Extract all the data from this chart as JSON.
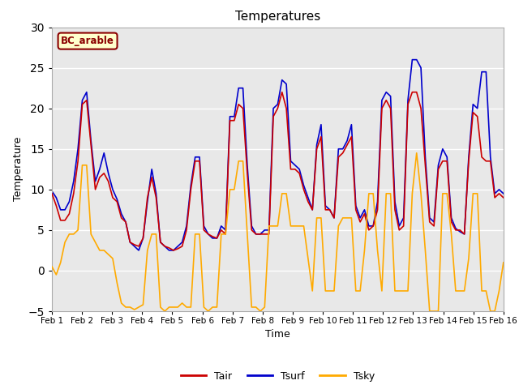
{
  "title": "Temperatures",
  "xlabel": "Time",
  "ylabel": "Temperature",
  "ylim": [
    -5,
    30
  ],
  "yticks": [
    -5,
    0,
    5,
    10,
    15,
    20,
    25,
    30
  ],
  "xtick_labels": [
    "Feb 1",
    "Feb 2",
    "Feb 3",
    "Feb 4",
    "Feb 5",
    "Feb 6",
    "Feb 7",
    "Feb 8",
    "Feb 9",
    "Feb 10",
    "Feb 11",
    "Feb 12",
    "Feb 13",
    "Feb 14",
    "Feb 15",
    "Feb 16"
  ],
  "legend_label": "BC_arable",
  "line_colors": {
    "Tair": "#cc0000",
    "Tsurf": "#0000cc",
    "Tsky": "#ffaa00"
  },
  "plot_bg_color": "#e8e8e8",
  "fig_bg_color": "#ffffff",
  "grid_color": "#ffffff",
  "legend_box_facecolor": "#ffffcc",
  "legend_box_edgecolor": "#8b0000",
  "legend_text_color": "#8b0000",
  "Tair": [
    9.5,
    8.0,
    6.2,
    6.2,
    7.0,
    9.5,
    13.5,
    20.5,
    21.0,
    15.5,
    10.0,
    11.5,
    12.0,
    11.0,
    9.0,
    8.5,
    6.5,
    6.0,
    3.5,
    3.2,
    3.0,
    4.0,
    9.0,
    11.5,
    9.0,
    3.5,
    3.0,
    2.8,
    2.5,
    2.7,
    3.0,
    5.0,
    10.0,
    13.5,
    13.5,
    5.0,
    4.5,
    4.2,
    4.0,
    5.0,
    4.5,
    18.5,
    18.5,
    20.5,
    20.0,
    12.0,
    5.0,
    4.5,
    4.5,
    4.5,
    4.5,
    19.0,
    20.0,
    22.0,
    20.0,
    12.5,
    12.5,
    12.0,
    10.0,
    8.5,
    7.5,
    15.0,
    16.5,
    7.5,
    7.5,
    6.5,
    14.0,
    14.5,
    15.5,
    16.5,
    7.5,
    6.0,
    7.0,
    5.0,
    5.5,
    7.5,
    20.0,
    21.0,
    20.0,
    7.5,
    5.0,
    5.5,
    20.5,
    22.0,
    22.0,
    20.0,
    13.0,
    6.0,
    5.5,
    12.5,
    13.5,
    13.5,
    6.0,
    5.0,
    5.0,
    4.5,
    13.5,
    19.5,
    19.0,
    14.0,
    13.5,
    13.5,
    9.0,
    9.5,
    9.0
  ],
  "Tsurf": [
    9.8,
    9.0,
    7.5,
    7.5,
    8.5,
    11.0,
    15.0,
    21.0,
    22.0,
    16.0,
    11.0,
    12.5,
    14.5,
    12.0,
    10.0,
    8.8,
    7.0,
    6.0,
    3.5,
    3.0,
    2.5,
    4.0,
    8.5,
    12.5,
    9.5,
    3.5,
    3.0,
    2.5,
    2.5,
    3.0,
    3.5,
    5.5,
    10.5,
    14.0,
    14.0,
    5.5,
    4.5,
    4.0,
    4.0,
    5.5,
    5.0,
    19.0,
    19.0,
    22.5,
    22.5,
    13.0,
    5.5,
    4.5,
    4.5,
    5.0,
    5.0,
    20.0,
    20.5,
    23.5,
    23.0,
    13.5,
    13.0,
    12.5,
    10.5,
    9.0,
    7.5,
    15.5,
    18.0,
    8.0,
    7.5,
    6.5,
    15.0,
    15.0,
    16.0,
    18.0,
    8.0,
    6.5,
    7.5,
    5.5,
    5.5,
    8.5,
    21.0,
    22.0,
    21.5,
    8.5,
    5.5,
    6.5,
    21.0,
    26.0,
    26.0,
    25.0,
    14.0,
    6.5,
    6.0,
    13.0,
    15.0,
    14.0,
    6.5,
    5.2,
    4.8,
    4.5,
    14.0,
    20.5,
    20.0,
    24.5,
    24.5,
    14.0,
    9.5,
    10.0,
    9.5
  ],
  "Tsky": [
    0.5,
    -0.5,
    1.0,
    3.5,
    4.5,
    4.5,
    5.0,
    13.0,
    13.0,
    4.5,
    3.5,
    2.5,
    2.5,
    2.0,
    1.5,
    -1.5,
    -4.0,
    -4.5,
    -4.5,
    -4.8,
    -4.5,
    -4.2,
    2.5,
    4.5,
    4.5,
    -4.5,
    -5.0,
    -4.5,
    -4.5,
    -4.5,
    -4.0,
    -4.5,
    -4.5,
    4.5,
    4.5,
    -4.5,
    -5.0,
    -4.5,
    -4.5,
    4.5,
    4.5,
    10.0,
    10.0,
    13.5,
    13.5,
    4.5,
    -4.5,
    -4.5,
    -5.0,
    -4.5,
    5.5,
    5.5,
    5.5,
    9.5,
    9.5,
    5.5,
    5.5,
    5.5,
    5.5,
    1.5,
    -2.5,
    6.5,
    6.5,
    -2.5,
    -2.5,
    -2.5,
    5.5,
    6.5,
    6.5,
    6.5,
    -2.5,
    -2.5,
    2.5,
    9.5,
    9.5,
    2.5,
    -2.5,
    9.5,
    9.5,
    -2.5,
    -2.5,
    -2.5,
    -2.5,
    9.5,
    14.5,
    9.5,
    2.5,
    -5.0,
    -5.0,
    -5.0,
    9.5,
    9.5,
    4.5,
    -2.5,
    -2.5,
    -2.5,
    1.5,
    9.5,
    9.5,
    -2.5,
    -2.5,
    -5.0,
    -5.0,
    -2.5,
    1.0
  ]
}
